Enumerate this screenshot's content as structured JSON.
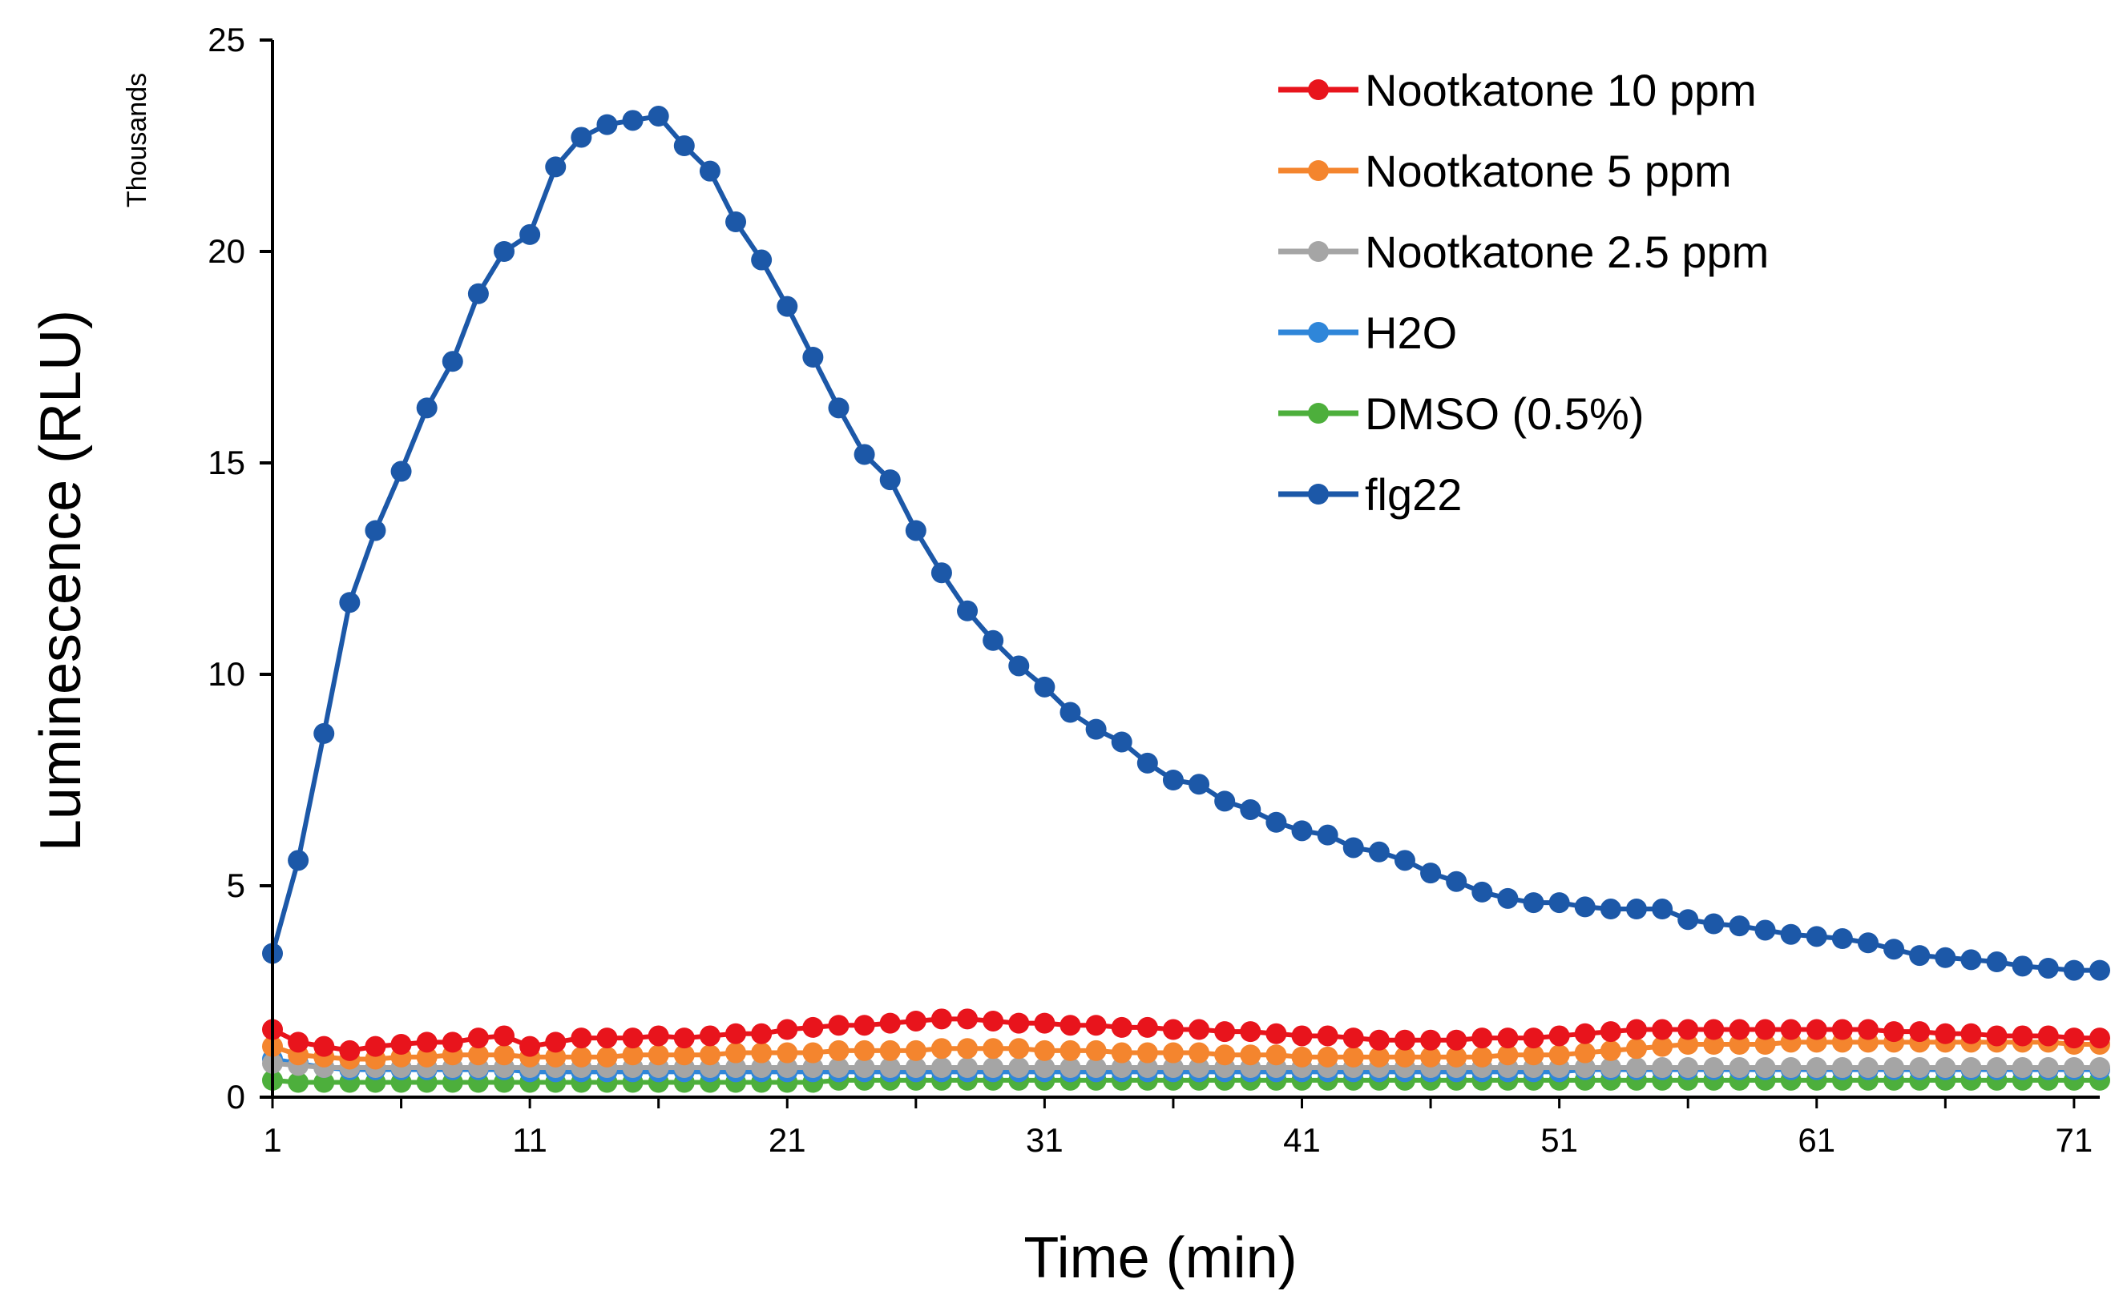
{
  "chart_data": {
    "type": "line",
    "title": "",
    "xlabel": "Time (min)",
    "ylabel": "Luminescence (RLU)",
    "y_unit_label": "Thousands",
    "xlim": [
      1,
      72
    ],
    "ylim": [
      0,
      25
    ],
    "x_ticks": [
      1,
      11,
      21,
      31,
      41,
      51,
      61,
      71
    ],
    "y_ticks": [
      0,
      5,
      10,
      15,
      20,
      25
    ],
    "legend_position": "top-right",
    "series": [
      {
        "name": "Nootkatone 10 ppm",
        "color": "#e8141c",
        "values": [
          1.6,
          1.3,
          1.2,
          1.1,
          1.2,
          1.25,
          1.3,
          1.3,
          1.4,
          1.45,
          1.2,
          1.3,
          1.4,
          1.4,
          1.4,
          1.45,
          1.4,
          1.45,
          1.5,
          1.5,
          1.6,
          1.65,
          1.7,
          1.7,
          1.75,
          1.8,
          1.85,
          1.85,
          1.8,
          1.75,
          1.75,
          1.7,
          1.7,
          1.65,
          1.65,
          1.6,
          1.6,
          1.55,
          1.55,
          1.5,
          1.45,
          1.45,
          1.4,
          1.35,
          1.35,
          1.35,
          1.35,
          1.4,
          1.4,
          1.4,
          1.45,
          1.5,
          1.55,
          1.6,
          1.6,
          1.6,
          1.6,
          1.6,
          1.6,
          1.6,
          1.6,
          1.6,
          1.6,
          1.55,
          1.55,
          1.5,
          1.5,
          1.45,
          1.45,
          1.45,
          1.4,
          1.4
        ]
      },
      {
        "name": "Nootkatone 5 ppm",
        "color": "#f4852e",
        "values": [
          1.2,
          1.0,
          0.95,
          0.9,
          0.9,
          0.95,
          0.95,
          1.0,
          1.0,
          1.0,
          0.95,
          0.95,
          0.95,
          0.95,
          1.0,
          1.0,
          1.0,
          1.0,
          1.05,
          1.05,
          1.05,
          1.05,
          1.1,
          1.1,
          1.1,
          1.1,
          1.15,
          1.15,
          1.15,
          1.15,
          1.1,
          1.1,
          1.1,
          1.05,
          1.05,
          1.05,
          1.05,
          1.0,
          1.0,
          1.0,
          0.95,
          0.95,
          0.95,
          0.95,
          0.95,
          0.95,
          0.95,
          0.95,
          1.0,
          1.0,
          1.0,
          1.05,
          1.1,
          1.15,
          1.2,
          1.25,
          1.25,
          1.25,
          1.25,
          1.3,
          1.3,
          1.3,
          1.3,
          1.3,
          1.3,
          1.3,
          1.3,
          1.3,
          1.3,
          1.3,
          1.25,
          1.25
        ]
      },
      {
        "name": "Nootkatone 2.5 ppm",
        "color": "#a5a5a5",
        "values": [
          0.8,
          0.75,
          0.7,
          0.7,
          0.7,
          0.7,
          0.7,
          0.7,
          0.7,
          0.7,
          0.7,
          0.7,
          0.7,
          0.7,
          0.7,
          0.7,
          0.7,
          0.7,
          0.7,
          0.7,
          0.7,
          0.7,
          0.7,
          0.7,
          0.7,
          0.7,
          0.7,
          0.7,
          0.7,
          0.7,
          0.7,
          0.7,
          0.7,
          0.7,
          0.7,
          0.7,
          0.7,
          0.7,
          0.7,
          0.7,
          0.7,
          0.7,
          0.7,
          0.7,
          0.7,
          0.7,
          0.7,
          0.7,
          0.7,
          0.7,
          0.7,
          0.7,
          0.7,
          0.7,
          0.7,
          0.7,
          0.7,
          0.7,
          0.7,
          0.7,
          0.7,
          0.7,
          0.7,
          0.7,
          0.7,
          0.7,
          0.7,
          0.7,
          0.7,
          0.7,
          0.7,
          0.7
        ]
      },
      {
        "name": "H2O",
        "color": "#2f86d9",
        "values": [
          0.9,
          0.8,
          0.7,
          0.65,
          0.65,
          0.65,
          0.65,
          0.65,
          0.65,
          0.65,
          0.6,
          0.6,
          0.6,
          0.6,
          0.6,
          0.6,
          0.6,
          0.6,
          0.6,
          0.6,
          0.6,
          0.6,
          0.6,
          0.6,
          0.6,
          0.6,
          0.6,
          0.6,
          0.6,
          0.6,
          0.6,
          0.6,
          0.6,
          0.6,
          0.6,
          0.6,
          0.6,
          0.6,
          0.6,
          0.6,
          0.6,
          0.6,
          0.6,
          0.6,
          0.6,
          0.6,
          0.6,
          0.6,
          0.6,
          0.6,
          0.6,
          0.65,
          0.65,
          0.65,
          0.65,
          0.65,
          0.65,
          0.65,
          0.65,
          0.65,
          0.65,
          0.65,
          0.65,
          0.65,
          0.65,
          0.65,
          0.65,
          0.65,
          0.65,
          0.65,
          0.65,
          0.65
        ]
      },
      {
        "name": "DMSO (0.5%)",
        "color": "#4daf3c",
        "values": [
          0.4,
          0.35,
          0.35,
          0.35,
          0.35,
          0.35,
          0.35,
          0.35,
          0.35,
          0.35,
          0.35,
          0.35,
          0.35,
          0.35,
          0.35,
          0.35,
          0.35,
          0.35,
          0.35,
          0.35,
          0.35,
          0.35,
          0.4,
          0.4,
          0.4,
          0.4,
          0.4,
          0.4,
          0.4,
          0.4,
          0.4,
          0.4,
          0.4,
          0.4,
          0.4,
          0.4,
          0.4,
          0.4,
          0.4,
          0.4,
          0.4,
          0.4,
          0.4,
          0.4,
          0.4,
          0.4,
          0.4,
          0.4,
          0.4,
          0.4,
          0.4,
          0.4,
          0.4,
          0.4,
          0.4,
          0.4,
          0.4,
          0.4,
          0.4,
          0.4,
          0.4,
          0.4,
          0.4,
          0.4,
          0.4,
          0.4,
          0.4,
          0.4,
          0.4,
          0.4,
          0.4,
          0.4
        ]
      },
      {
        "name": "flg22",
        "color": "#1c58a8",
        "values": [
          3.4,
          5.6,
          8.6,
          11.7,
          13.4,
          14.8,
          16.3,
          17.4,
          19.0,
          20.0,
          20.4,
          22.0,
          22.7,
          23.0,
          23.1,
          23.2,
          22.5,
          21.9,
          20.7,
          19.8,
          18.7,
          17.5,
          16.3,
          15.2,
          14.6,
          13.4,
          12.4,
          11.5,
          10.8,
          10.2,
          9.7,
          9.1,
          8.7,
          8.4,
          7.9,
          7.5,
          7.4,
          7.0,
          6.8,
          6.5,
          6.3,
          6.2,
          5.9,
          5.8,
          5.6,
          5.3,
          5.1,
          4.85,
          4.7,
          4.6,
          4.6,
          4.5,
          4.45,
          4.45,
          4.45,
          4.2,
          4.1,
          4.05,
          3.95,
          3.85,
          3.8,
          3.75,
          3.65,
          3.5,
          3.35,
          3.3,
          3.25,
          3.2,
          3.1,
          3.05,
          3.0,
          3.0
        ]
      }
    ]
  }
}
